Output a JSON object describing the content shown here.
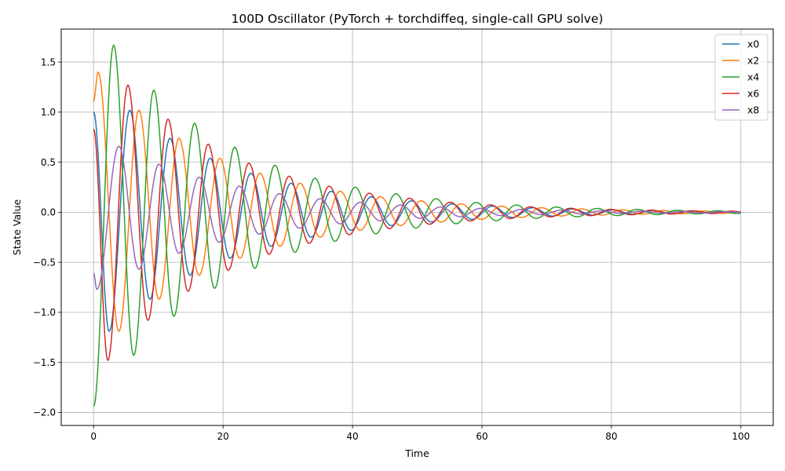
{
  "chart_data": {
    "type": "line",
    "title": "100D Oscillator (PyTorch + torchdiffeq, single-call GPU solve)",
    "xlabel": "Time",
    "ylabel": "State Value",
    "xlim": [
      -5,
      105
    ],
    "ylim": [
      -2.13,
      1.83
    ],
    "x_ticks": [
      0,
      20,
      40,
      60,
      80,
      100
    ],
    "x_tick_labels": [
      "0",
      "20",
      "40",
      "60",
      "80",
      "100"
    ],
    "y_ticks": [
      -2.0,
      -1.5,
      -1.0,
      -0.5,
      0.0,
      0.5,
      1.0,
      1.5
    ],
    "y_tick_labels": [
      "−2.0",
      "−1.5",
      "−1.0",
      "−0.5",
      "0.0",
      "0.5",
      "1.0",
      "1.5"
    ],
    "grid": true,
    "legend_position": "top-right",
    "x_range": [
      0,
      100
    ],
    "series": [
      {
        "name": "x0",
        "color": "#1f77b4",
        "peaks": [
          [
            0.0,
            1.0
          ],
          [
            2.4,
            -1.19
          ],
          [
            5.6,
            1.02
          ],
          [
            8.7,
            -0.87
          ],
          [
            11.8,
            0.74
          ],
          [
            14.9,
            -0.63
          ],
          [
            18.0,
            0.54
          ],
          [
            21.1,
            -0.46
          ],
          [
            24.3,
            0.39
          ],
          [
            27.4,
            -0.34
          ],
          [
            30.5,
            0.29
          ],
          [
            33.6,
            -0.25
          ],
          [
            36.7,
            0.21
          ],
          [
            39.8,
            -0.18
          ],
          [
            42.9,
            0.155
          ],
          [
            46.0,
            -0.133
          ],
          [
            49.1,
            0.114
          ],
          [
            52.2,
            -0.097
          ],
          [
            55.4,
            0.083
          ],
          [
            58.5,
            -0.071
          ],
          [
            61.6,
            0.061
          ],
          [
            64.7,
            -0.052
          ],
          [
            67.8,
            0.045
          ],
          [
            70.9,
            -0.038
          ],
          [
            74.0,
            0.033
          ],
          [
            77.1,
            -0.028
          ],
          [
            80.2,
            0.024
          ],
          [
            83.3,
            -0.02
          ],
          [
            86.4,
            0.017
          ],
          [
            89.5,
            -0.015
          ],
          [
            92.6,
            0.013
          ],
          [
            95.7,
            -0.011
          ],
          [
            98.8,
            0.009
          ],
          [
            100.0,
            0.002
          ]
        ]
      },
      {
        "name": "x2",
        "color": "#ff7f0e",
        "peaks": [
          [
            0.0,
            1.11
          ],
          [
            0.7,
            1.4
          ],
          [
            3.9,
            -1.19
          ],
          [
            7.0,
            1.02
          ],
          [
            10.1,
            -0.87
          ],
          [
            13.2,
            0.74
          ],
          [
            16.3,
            -0.63
          ],
          [
            19.5,
            0.54
          ],
          [
            22.6,
            -0.46
          ],
          [
            25.7,
            0.39
          ],
          [
            28.8,
            -0.34
          ],
          [
            31.9,
            0.29
          ],
          [
            35.0,
            -0.25
          ],
          [
            38.1,
            0.21
          ],
          [
            41.2,
            -0.18
          ],
          [
            44.3,
            0.155
          ],
          [
            47.4,
            -0.133
          ],
          [
            50.6,
            0.114
          ],
          [
            53.7,
            -0.097
          ],
          [
            56.8,
            0.083
          ],
          [
            59.9,
            -0.071
          ],
          [
            63.0,
            0.061
          ],
          [
            66.1,
            -0.052
          ],
          [
            69.2,
            0.045
          ],
          [
            72.3,
            -0.038
          ],
          [
            75.4,
            0.033
          ],
          [
            78.5,
            -0.028
          ],
          [
            81.7,
            0.024
          ],
          [
            84.8,
            -0.02
          ],
          [
            87.9,
            0.017
          ],
          [
            91.0,
            -0.015
          ],
          [
            94.1,
            0.013
          ],
          [
            97.2,
            -0.011
          ],
          [
            100.0,
            0.003
          ]
        ]
      },
      {
        "name": "x4",
        "color": "#2ca02c",
        "peaks": [
          [
            0.0,
            -1.94
          ],
          [
            3.1,
            1.67
          ],
          [
            6.2,
            -1.43
          ],
          [
            9.3,
            1.22
          ],
          [
            12.4,
            -1.04
          ],
          [
            15.6,
            0.89
          ],
          [
            18.7,
            -0.76
          ],
          [
            21.8,
            0.65
          ],
          [
            24.9,
            -0.56
          ],
          [
            28.0,
            0.47
          ],
          [
            31.1,
            -0.4
          ],
          [
            34.2,
            0.34
          ],
          [
            37.3,
            -0.29
          ],
          [
            40.4,
            0.25
          ],
          [
            43.6,
            -0.215
          ],
          [
            46.7,
            0.185
          ],
          [
            49.8,
            -0.158
          ],
          [
            52.9,
            0.135
          ],
          [
            56.0,
            -0.115
          ],
          [
            59.1,
            0.098
          ],
          [
            62.2,
            -0.084
          ],
          [
            65.3,
            0.072
          ],
          [
            68.4,
            -0.061
          ],
          [
            71.5,
            0.052
          ],
          [
            74.7,
            -0.045
          ],
          [
            77.8,
            0.038
          ],
          [
            80.9,
            -0.033
          ],
          [
            84.0,
            0.028
          ],
          [
            87.1,
            -0.024
          ],
          [
            90.2,
            0.02
          ],
          [
            93.3,
            -0.017
          ],
          [
            96.4,
            0.015
          ],
          [
            99.5,
            -0.013
          ],
          [
            100.0,
            -0.01
          ]
        ]
      },
      {
        "name": "x6",
        "color": "#d62728",
        "peaks": [
          [
            0.0,
            0.83
          ],
          [
            2.2,
            -1.48
          ],
          [
            5.3,
            1.27
          ],
          [
            8.4,
            -1.08
          ],
          [
            11.5,
            0.93
          ],
          [
            14.6,
            -0.79
          ],
          [
            17.7,
            0.68
          ],
          [
            20.8,
            -0.58
          ],
          [
            24.0,
            0.49
          ],
          [
            27.1,
            -0.42
          ],
          [
            30.2,
            0.36
          ],
          [
            33.3,
            -0.31
          ],
          [
            36.4,
            0.26
          ],
          [
            39.5,
            -0.225
          ],
          [
            42.6,
            0.19
          ],
          [
            45.7,
            -0.163
          ],
          [
            48.8,
            0.14
          ],
          [
            51.9,
            -0.12
          ],
          [
            55.1,
            0.1
          ],
          [
            58.2,
            -0.087
          ],
          [
            61.3,
            0.074
          ],
          [
            64.4,
            -0.063
          ],
          [
            67.5,
            0.054
          ],
          [
            70.6,
            -0.046
          ],
          [
            73.7,
            0.04
          ],
          [
            76.8,
            -0.034
          ],
          [
            79.9,
            0.029
          ],
          [
            83.1,
            -0.025
          ],
          [
            86.2,
            0.021
          ],
          [
            89.3,
            -0.018
          ],
          [
            92.4,
            0.015
          ],
          [
            95.5,
            -0.013
          ],
          [
            98.6,
            0.011
          ],
          [
            100.0,
            0.003
          ]
        ]
      },
      {
        "name": "x8",
        "color": "#9467bd",
        "peaks": [
          [
            0.0,
            -0.61
          ],
          [
            0.5,
            -0.77
          ],
          [
            3.9,
            0.66
          ],
          [
            7.0,
            -0.57
          ],
          [
            10.1,
            0.48
          ],
          [
            13.2,
            -0.41
          ],
          [
            16.3,
            0.35
          ],
          [
            19.4,
            -0.3
          ],
          [
            22.5,
            0.26
          ],
          [
            25.6,
            -0.22
          ],
          [
            28.7,
            0.186
          ],
          [
            31.8,
            -0.159
          ],
          [
            35.0,
            0.136
          ],
          [
            38.1,
            -0.116
          ],
          [
            41.2,
            0.099
          ],
          [
            44.3,
            -0.085
          ],
          [
            47.4,
            0.073
          ],
          [
            50.5,
            -0.062
          ],
          [
            53.6,
            0.053
          ],
          [
            56.7,
            -0.045
          ],
          [
            59.8,
            0.039
          ],
          [
            62.9,
            -0.033
          ],
          [
            66.1,
            0.028
          ],
          [
            69.2,
            -0.024
          ],
          [
            72.3,
            0.021
          ],
          [
            75.4,
            -0.018
          ],
          [
            78.5,
            0.015
          ],
          [
            81.6,
            -0.013
          ],
          [
            84.7,
            0.011
          ],
          [
            87.8,
            -0.01
          ],
          [
            90.9,
            0.008
          ],
          [
            94.0,
            -0.007
          ],
          [
            97.1,
            0.006
          ],
          [
            100.0,
            0.0
          ]
        ]
      }
    ]
  }
}
